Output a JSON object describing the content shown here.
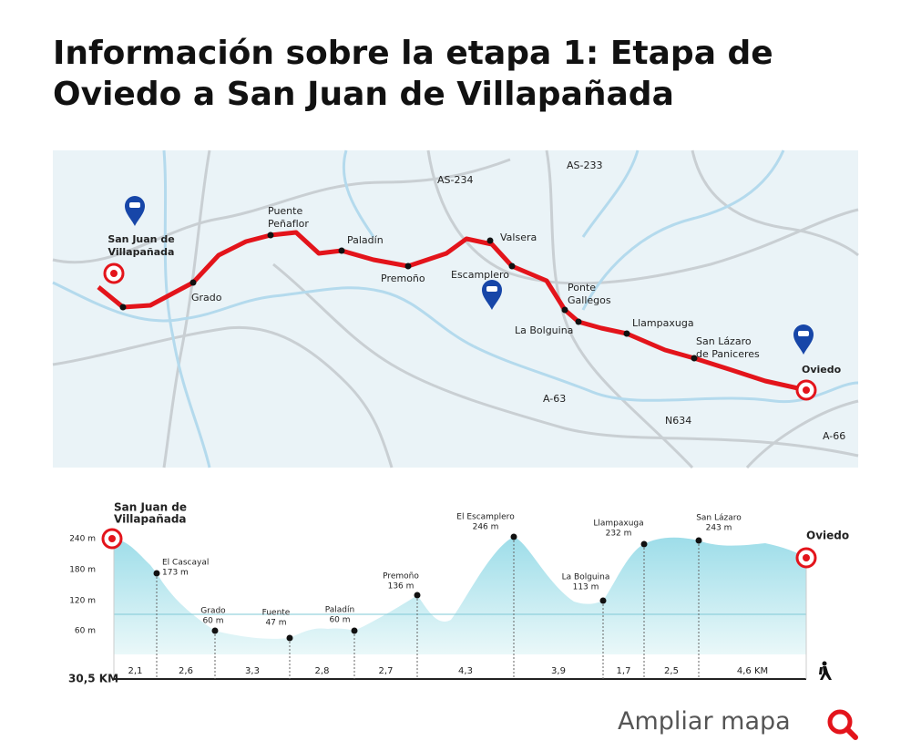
{
  "title": "Información sobre la etapa 1: Etapa de Oviedo a San Juan de Villapañada",
  "map": {
    "places": [
      {
        "lines": [
          "San Juan de",
          "Villapañada"
        ]
      },
      {
        "lines": [
          "Grado"
        ]
      },
      {
        "lines": [
          "Puente",
          "Peñaflor"
        ]
      },
      {
        "lines": [
          "Paladín"
        ]
      },
      {
        "lines": [
          "Premoño"
        ]
      },
      {
        "lines": [
          "Valsera"
        ]
      },
      {
        "lines": [
          "Escamplero"
        ]
      },
      {
        "lines": [
          "Ponte",
          "Gallegos"
        ]
      },
      {
        "lines": [
          "La Bolguina"
        ]
      },
      {
        "lines": [
          "Llampaxuga"
        ]
      },
      {
        "lines": [
          "San Lázaro",
          "de Paniceres"
        ]
      },
      {
        "lines": [
          "Oviedo"
        ]
      }
    ],
    "roads": [
      "AS-234",
      "AS-233",
      "A-63",
      "N634",
      "A-66"
    ]
  },
  "profile": {
    "start": [
      "San Juan de",
      "Villapañada"
    ],
    "end": "Oviedo",
    "y_labels": [
      "240 m",
      "180 m",
      "120 m",
      "60 m"
    ],
    "points": [
      {
        "name": "El Cascayal",
        "elevation": "173 m"
      },
      {
        "name": "Grado",
        "elevation": "60 m"
      },
      {
        "name": "Fuente",
        "elevation": "47 m"
      },
      {
        "name": "Paladín",
        "elevation": "60 m"
      },
      {
        "name": "Premoño",
        "elevation": "136 m"
      },
      {
        "name": "El Escamplero",
        "elevation": "246 m"
      },
      {
        "name": "La Bolguina",
        "elevation": "113 m"
      },
      {
        "name": "Llampaxuga",
        "elevation": "232 m"
      },
      {
        "name": "San Lázaro",
        "elevation": "243 m"
      }
    ],
    "segments": [
      "2,1",
      "2,6",
      "3,3",
      "2,8",
      "2,7",
      "4,3",
      "3,9",
      "1,7",
      "2,5",
      "4,6 KM"
    ],
    "total": "30,5 KM"
  },
  "link": "Ampliar mapa"
}
